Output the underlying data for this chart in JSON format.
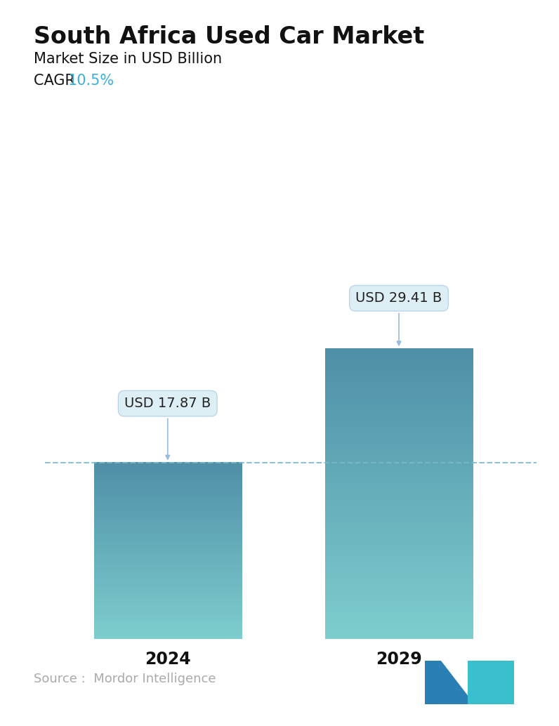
{
  "title": "South Africa Used Car Market",
  "subtitle": "Market Size in USD Billion",
  "cagr_label": "CAGR  ",
  "cagr_value": "10.5%",
  "cagr_color": "#3ab0d8",
  "years": [
    "2024",
    "2029"
  ],
  "values": [
    17.87,
    29.41
  ],
  "labels": [
    "USD 17.87 B",
    "USD 29.41 B"
  ],
  "bar_top_color": "#4f8fa8",
  "bar_bottom_color": "#7ecece",
  "dashed_line_color": "#7ab8cc",
  "source_text": "Source :  Mordor Intelligence",
  "source_color": "#aaaaaa",
  "background_color": "#ffffff",
  "title_fontsize": 24,
  "subtitle_fontsize": 15,
  "cagr_fontsize": 15,
  "label_fontsize": 14,
  "tick_fontsize": 17,
  "source_fontsize": 13,
  "logo_left_color": "#2a7fb5",
  "logo_right_color": "#3abfcf"
}
